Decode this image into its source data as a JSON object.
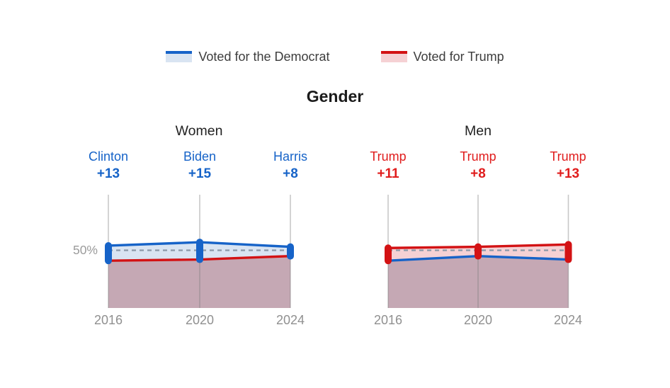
{
  "title": "Gender",
  "legend": {
    "democrat_label": "Voted for the Democrat",
    "trump_label": "Voted for Trump"
  },
  "axis": {
    "fifty_label": "50%",
    "years": [
      "2016",
      "2020",
      "2024"
    ]
  },
  "colors": {
    "dem": "#1663c8",
    "rep": "#d31214",
    "dem_text": "#1663c8",
    "rep_text": "#e01c1c",
    "dem_fill": "#d9e4f2",
    "rep_fill": "#f5d1d4",
    "overlap_fill": "#c5a8b4",
    "dashed": "#8a98a8",
    "grid": "#c9c9c9",
    "muted_text": "#909090",
    "legend_text": "#3d3d3d",
    "title_text": "#1b1b1b"
  },
  "chart_data": {
    "type": "area",
    "title": "Gender",
    "x": [
      "2016",
      "2020",
      "2024"
    ],
    "ylim": [
      0,
      100
    ],
    "reference_line": 50,
    "legend_position": "top",
    "grid": "vertical-only",
    "panels": [
      {
        "title": "Women",
        "leader": "dem",
        "series": [
          {
            "name": "Voted for the Democrat",
            "values": [
              54,
              57,
              53
            ]
          },
          {
            "name": "Voted for Trump",
            "values": [
              41,
              42,
              45
            ]
          }
        ],
        "points": [
          {
            "year": "2016",
            "name": "Clinton",
            "margin": "+13",
            "dem": 54,
            "rep": 41
          },
          {
            "year": "2020",
            "name": "Biden",
            "margin": "+15",
            "dem": 57,
            "rep": 42
          },
          {
            "year": "2024",
            "name": "Harris",
            "margin": "+8",
            "dem": 53,
            "rep": 45
          }
        ]
      },
      {
        "title": "Men",
        "leader": "rep",
        "series": [
          {
            "name": "Voted for the Democrat",
            "values": [
              41,
              45,
              42
            ]
          },
          {
            "name": "Voted for Trump",
            "values": [
              52,
              53,
              55
            ]
          }
        ],
        "points": [
          {
            "year": "2016",
            "name": "Trump",
            "margin": "+11",
            "dem": 41,
            "rep": 52
          },
          {
            "year": "2020",
            "name": "Trump",
            "margin": "+8",
            "dem": 45,
            "rep": 53
          },
          {
            "year": "2024",
            "name": "Trump",
            "margin": "+13",
            "dem": 42,
            "rep": 55
          }
        ]
      }
    ]
  }
}
